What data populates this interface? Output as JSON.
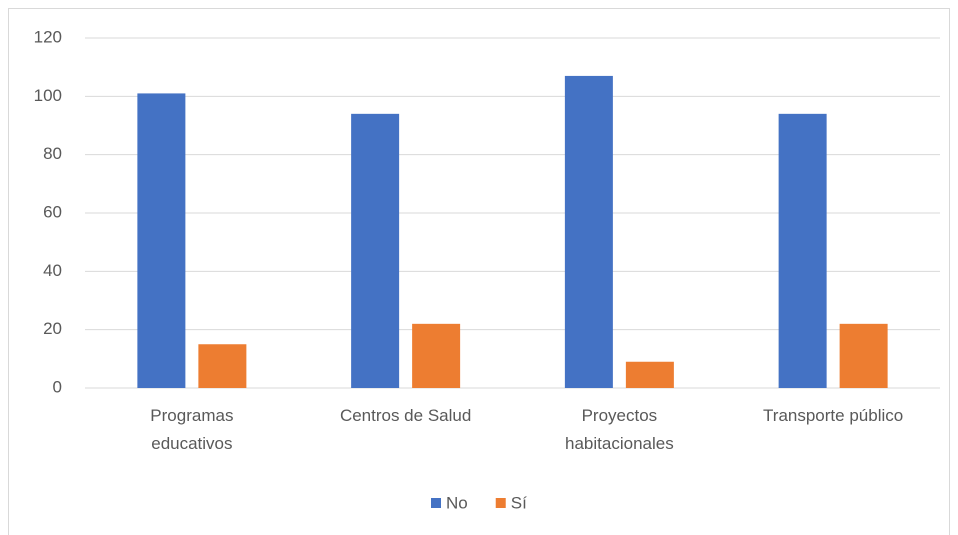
{
  "chart_data": {
    "type": "bar",
    "categories": [
      "Programas\neducativos",
      "Centros de Salud",
      "Proyectos\nhabitacionales",
      "Transporte público"
    ],
    "series": [
      {
        "name": "No",
        "color": "#4472c4",
        "values": [
          101,
          94,
          107,
          94
        ]
      },
      {
        "name": "Sí",
        "color": "#ed7d31",
        "values": [
          15,
          22,
          9,
          22
        ]
      }
    ],
    "ylim": [
      0,
      120
    ],
    "yticks": [
      0,
      20,
      40,
      60,
      80,
      100,
      120
    ],
    "grid": true,
    "legend": "bottom"
  }
}
